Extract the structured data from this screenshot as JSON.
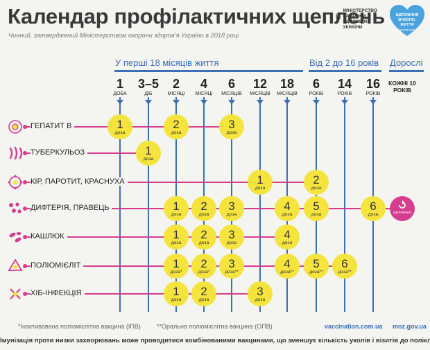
{
  "header": {
    "title": "Календар профілактичних щеплень",
    "subtitle": "Чинний, затверджений Міністерством охорони здоров’я України в 2018 році",
    "ministry_lines": [
      "Міністерство",
      "охорони",
      "здоров’я",
      "України"
    ],
    "campaign_logo_lines": [
      "Щеплення",
      "вчасно. Життя",
      "безпечне"
    ]
  },
  "age_groups": [
    {
      "label": "У перші 18 місяців життя"
    },
    {
      "label": "Від 2 до 16 років"
    },
    {
      "label": "Дорослі"
    }
  ],
  "columns": [
    {
      "num": "1",
      "unit": "доба"
    },
    {
      "num": "3–5",
      "unit": "діб"
    },
    {
      "num": "2",
      "unit": "місяці"
    },
    {
      "num": "4",
      "unit": "місяці"
    },
    {
      "num": "6",
      "unit": "місяців"
    },
    {
      "num": "12",
      "unit": "місяців"
    },
    {
      "num": "18",
      "unit": "місяців"
    },
    {
      "num": "6",
      "unit": "років"
    },
    {
      "num": "14",
      "unit": "років"
    },
    {
      "num": "16",
      "unit": "років"
    },
    {
      "adult": "Кожні 10 років"
    }
  ],
  "dose_word": "доза",
  "adult_dose_word": "щеплення",
  "diseases": [
    {
      "name": "Гепатит B",
      "icon": "hepatitis-virus-icon",
      "doses": [
        {
          "col": 0,
          "n": "1"
        },
        {
          "col": 2,
          "n": "2"
        },
        {
          "col": 4,
          "n": "3"
        }
      ]
    },
    {
      "name": "Туберкульоз",
      "icon": "tuberculosis-bacteria-icon",
      "doses": [
        {
          "col": 1,
          "n": "1"
        }
      ]
    },
    {
      "name": "Кір, паротит, краснуха",
      "icon": "measles-virus-icon",
      "doses": [
        {
          "col": 5,
          "n": "1"
        },
        {
          "col": 7,
          "n": "2"
        }
      ]
    },
    {
      "name": "Дифтерія, правець",
      "icon": "diphtheria-bacteria-icon",
      "doses": [
        {
          "col": 2,
          "n": "1"
        },
        {
          "col": 3,
          "n": "2"
        },
        {
          "col": 4,
          "n": "3"
        },
        {
          "col": 6,
          "n": "4"
        },
        {
          "col": 7,
          "n": "5"
        },
        {
          "col": 9,
          "n": "6"
        },
        {
          "col": 10,
          "adult": true
        }
      ]
    },
    {
      "name": "Кашлюк",
      "icon": "pertussis-bacteria-icon",
      "doses": [
        {
          "col": 2,
          "n": "1"
        },
        {
          "col": 3,
          "n": "2"
        },
        {
          "col": 4,
          "n": "3"
        },
        {
          "col": 6,
          "n": "4"
        }
      ]
    },
    {
      "name": "Поліомієліт",
      "icon": "polio-virus-icon",
      "doses": [
        {
          "col": 2,
          "n": "1",
          "mark": "*"
        },
        {
          "col": 3,
          "n": "2",
          "mark": "*"
        },
        {
          "col": 4,
          "n": "3",
          "mark": "**"
        },
        {
          "col": 6,
          "n": "4",
          "mark": "**"
        },
        {
          "col": 7,
          "n": "5",
          "mark": "**"
        },
        {
          "col": 8,
          "n": "6",
          "mark": "**"
        }
      ]
    },
    {
      "name": "Хіб-інфекція",
      "icon": "hib-bacteria-icon",
      "doses": [
        {
          "col": 2,
          "n": "1"
        },
        {
          "col": 3,
          "n": "2"
        },
        {
          "col": 5,
          "n": "3"
        }
      ]
    }
  ],
  "footer": {
    "note_ipv": "*Інактивована поліомієлітна вакцина (ІПВ)",
    "note_opv": "**Оральна поліомієлітна вакцина (ОПВ)",
    "site1": "vaccination.com.ua",
    "site2": "moz.gov.ua",
    "bottom_note": "Імунізація проти низки захворювань може проводитися комбінованими вакцинами, що зменшує кількість уколів і візитів до поліклінік."
  },
  "colors": {
    "accent_blue": "#3c6fb4",
    "line_magenta": "#d63d8f",
    "dose_yellow": "#f5e43d",
    "background": "#f4f4f0"
  }
}
